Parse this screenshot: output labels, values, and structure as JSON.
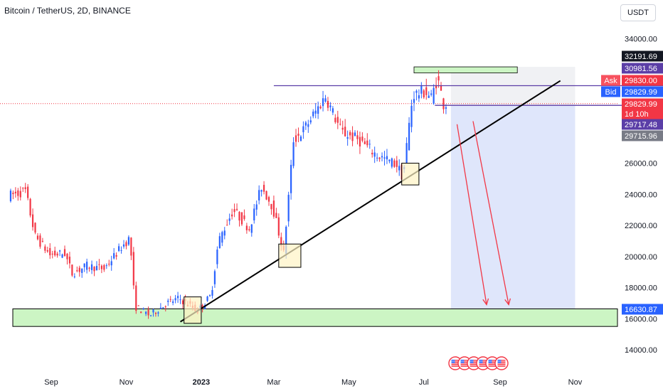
{
  "header": {
    "symbol_title": "Bitcoin / TetherUS, 2D, BINANCE",
    "currency_button": "USDT"
  },
  "colors": {
    "up": "#2962ff",
    "down": "#f23645",
    "support_zone": "#ccf5c4",
    "trendline": "#000000",
    "resistance_line": "#5b3ea7",
    "forecast_zone": "#dfe6fb",
    "forecast_arrow": "#f23645"
  },
  "chart_data": {
    "type": "candlestick",
    "ylim": [
      13000,
      35000
    ],
    "y_ticks": [
      14000,
      16000,
      18000,
      20000,
      22000,
      24000,
      26000,
      34000
    ],
    "y_tick_labels": [
      "14000.00",
      "16000.00",
      "18000.00",
      "20000.00",
      "22000.00",
      "24000.00",
      "26000.00",
      "34000.00"
    ],
    "x_labels": [
      {
        "label": "Sep",
        "date": "2022-09-01",
        "bold": false
      },
      {
        "label": "Nov",
        "date": "2022-11-01",
        "bold": false
      },
      {
        "label": "2023",
        "date": "2023-01-01",
        "bold": true
      },
      {
        "label": "Mar",
        "date": "2023-03-01",
        "bold": false
      },
      {
        "label": "May",
        "date": "2023-05-01",
        "bold": false
      },
      {
        "label": "Jul",
        "date": "2023-07-01",
        "bold": false
      },
      {
        "label": "Sep",
        "date": "2023-09-01",
        "bold": false
      },
      {
        "label": "Nov",
        "date": "2023-11-01",
        "bold": false
      }
    ],
    "price_path": [
      [
        "2022-07-29",
        23900
      ],
      [
        "2022-08-12",
        24200
      ],
      [
        "2022-08-20",
        21300
      ],
      [
        "2022-09-01",
        20100
      ],
      [
        "2022-09-13",
        20200
      ],
      [
        "2022-09-19",
        18900
      ],
      [
        "2022-10-01",
        19400
      ],
      [
        "2022-10-15",
        19200
      ],
      [
        "2022-10-29",
        20600
      ],
      [
        "2022-11-05",
        21200
      ],
      [
        "2022-11-09",
        16800
      ],
      [
        "2022-11-21",
        16200
      ],
      [
        "2022-12-05",
        17000
      ],
      [
        "2022-12-15",
        17300
      ],
      [
        "2022-12-30",
        16500
      ],
      [
        "2023-01-10",
        17500
      ],
      [
        "2023-01-16",
        21000
      ],
      [
        "2023-01-28",
        23000
      ],
      [
        "2023-02-10",
        21800
      ],
      [
        "2023-02-20",
        24500
      ],
      [
        "2023-03-01",
        23200
      ],
      [
        "2023-03-10",
        20200
      ],
      [
        "2023-03-18",
        27500
      ],
      [
        "2023-03-25",
        28000
      ],
      [
        "2023-04-13",
        30300
      ],
      [
        "2023-04-26",
        28000
      ],
      [
        "2023-05-10",
        27500
      ],
      [
        "2023-05-25",
        26500
      ],
      [
        "2023-06-10",
        25900
      ],
      [
        "2023-06-15",
        25100
      ],
      [
        "2023-06-20",
        28500
      ],
      [
        "2023-06-23",
        30400
      ],
      [
        "2023-07-03",
        30600
      ],
      [
        "2023-07-08",
        30200
      ],
      [
        "2023-07-13",
        31500
      ],
      [
        "2023-07-18",
        29830
      ]
    ],
    "price_labels": [
      {
        "text": "32191.69",
        "value": 32191.69,
        "color": "#131722"
      },
      {
        "text": "30981.56",
        "value": 30981.56,
        "color": "#5b3ea7"
      },
      {
        "text": "29830.00",
        "value": 29830.0,
        "color": "#f23645",
        "tag": "Ask",
        "tag_color": "#f7525f"
      },
      {
        "text": "29829.99",
        "value": 29829.99,
        "color": "#2962ff",
        "tag": "Bid",
        "tag_color": "#2962ff"
      },
      {
        "text": "29829.99",
        "value": 29829.99,
        "color": "#f23645",
        "subtext": "1d 10h"
      },
      {
        "text": "29717.48",
        "value": 29717.48,
        "color": "#5b3ea7"
      },
      {
        "text": "29715.96",
        "value": 29715.96,
        "color": "#787b86"
      },
      {
        "text": "16630.87",
        "value": 16630.87,
        "color": "#2962ff"
      }
    ],
    "drawings": {
      "support_zone": {
        "y_top": 16630.87,
        "y_bottom": 15500,
        "x_start": "2022-06-20",
        "x_end": "2024-01-31"
      },
      "trendline": {
        "start": [
          "2022-12-15",
          15800
        ],
        "end": [
          "2023-10-20",
          31300
        ]
      },
      "resistance_line": {
        "x_start": "2023-03-01",
        "x_end": "2024-01-31",
        "y": 30981.56
      },
      "current_line": {
        "x_start": "2023-07-10",
        "x_end": "2024-01-31",
        "y": 29717.48
      },
      "top_zone": {
        "x_start": "2023-06-23",
        "x_end": "2023-09-15",
        "y_top": 32191.69,
        "y_bottom": 31800
      },
      "forecast_zone": {
        "x_start": "2023-07-23",
        "x_end": "2023-11-01",
        "y_top": 29715.96,
        "y_bottom": 16630.87
      },
      "forecast_gray_zone": {
        "x_start": "2023-07-23",
        "x_end": "2023-11-01",
        "y_top": 32191.69,
        "y_bottom": 29715.96
      },
      "arrows": [
        {
          "start": [
            "2023-07-28",
            28500
          ],
          "end": [
            "2023-08-21",
            16900
          ]
        },
        {
          "start": [
            "2023-08-10",
            28700
          ],
          "end": [
            "2023-09-08",
            16900
          ]
        }
      ],
      "highlight_boxes": [
        {
          "x_start": "2022-12-18",
          "x_end": "2023-01-01",
          "y_top": 17400,
          "y_bottom": 15700
        },
        {
          "x_start": "2023-03-05",
          "x_end": "2023-03-23",
          "y_top": 20800,
          "y_bottom": 19300
        },
        {
          "x_start": "2023-06-13",
          "x_end": "2023-06-27",
          "y_top": 26000,
          "y_bottom": 24600
        }
      ]
    },
    "event_markers_count": 6
  }
}
